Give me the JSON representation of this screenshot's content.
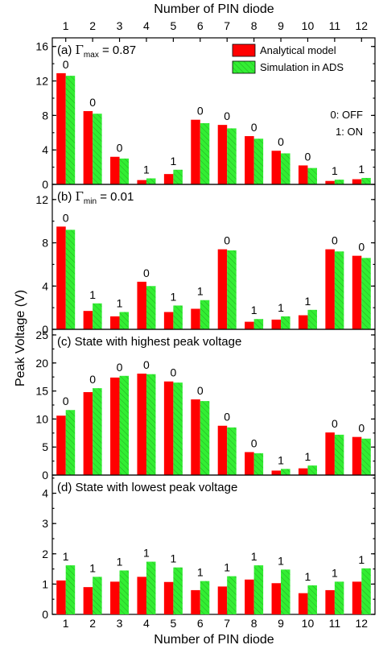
{
  "chart_data": {
    "type": "bar",
    "top_xlabel": "Number of PIN diode",
    "xlabel": "Number of PIN diode",
    "ylabel": "Peak Voltage (V)",
    "categories": [
      "1",
      "2",
      "3",
      "4",
      "5",
      "6",
      "7",
      "8",
      "9",
      "10",
      "11",
      "12"
    ],
    "legend": {
      "placement": "top-right",
      "entries": [
        {
          "name": "Analytical model",
          "color": "#ff0000"
        },
        {
          "name": "Simulation in ADS",
          "color": "#33ee33"
        }
      ],
      "notes": [
        "0: OFF",
        "1: ON"
      ]
    },
    "panels": [
      {
        "label": "(a)",
        "title_symbol": "Γ",
        "title_sub": "max",
        "title_rest": "= 0.87",
        "title": "",
        "ylim": [
          0,
          17
        ],
        "yticks": [
          0,
          4,
          8,
          12,
          16
        ],
        "minor_step": 2,
        "states": [
          "0",
          "0",
          "0",
          "1",
          "1",
          "0",
          "0",
          "0",
          "0",
          "0",
          "1",
          "1"
        ],
        "series": [
          {
            "name": "Analytical model",
            "values": [
              12.9,
              8.5,
              3.2,
              0.5,
              1.2,
              7.5,
              6.9,
              5.6,
              3.9,
              2.2,
              0.4,
              0.6
            ]
          },
          {
            "name": "Simulation in ADS",
            "values": [
              12.6,
              8.2,
              3.0,
              0.7,
              1.7,
              7.1,
              6.5,
              5.3,
              3.6,
              1.9,
              0.55,
              0.75
            ]
          }
        ]
      },
      {
        "label": "(b)",
        "title_symbol": "Γ",
        "title_sub": "min",
        "title_rest": "= 0.01",
        "title": "",
        "ylim": [
          0,
          13.4
        ],
        "yticks": [
          0,
          4,
          8,
          12
        ],
        "minor_step": 2,
        "states": [
          "0",
          "1",
          "1",
          "0",
          "1",
          "1",
          "0",
          "1",
          "1",
          "1",
          "0",
          "0"
        ],
        "series": [
          {
            "name": "Analytical model",
            "values": [
              9.5,
              1.7,
              1.2,
              4.4,
              1.6,
              1.9,
              7.4,
              0.7,
              0.9,
              1.3,
              7.4,
              6.8
            ]
          },
          {
            "name": "Simulation in ADS",
            "values": [
              9.2,
              2.4,
              1.6,
              4.0,
              2.2,
              2.7,
              7.3,
              0.95,
              1.2,
              1.8,
              7.2,
              6.6
            ]
          }
        ]
      },
      {
        "label": "(c)",
        "title_symbol": "",
        "title_sub": "",
        "title_rest": "",
        "title": "State with highest peak voltage",
        "ylim": [
          0,
          26
        ],
        "yticks": [
          0,
          5,
          10,
          15,
          20,
          25
        ],
        "minor_step": 2.5,
        "states": [
          "0",
          "0",
          "0",
          "0",
          "0",
          "0",
          "0",
          "0",
          "1",
          "1",
          "0",
          "0"
        ],
        "series": [
          {
            "name": "Analytical model",
            "values": [
              10.6,
              14.8,
              17.4,
              18.1,
              16.7,
              13.5,
              8.8,
              4.1,
              0.8,
              1.2,
              7.6,
              6.8
            ]
          },
          {
            "name": "Simulation in ADS",
            "values": [
              11.6,
              15.5,
              17.7,
              18.0,
              16.5,
              13.2,
              8.5,
              3.9,
              1.1,
              1.7,
              7.2,
              6.5
            ]
          }
        ]
      },
      {
        "label": "(d)",
        "title_symbol": "",
        "title_sub": "",
        "title_rest": "",
        "title": "State with lowest peak voltage",
        "ylim": [
          0,
          4.6
        ],
        "yticks": [
          0,
          1,
          2,
          3,
          4
        ],
        "minor_step": 0.5,
        "states": [
          "1",
          "1",
          "1",
          "1",
          "1",
          "1",
          "1",
          "1",
          "1",
          "1",
          "1",
          "1"
        ],
        "series": [
          {
            "name": "Analytical model",
            "values": [
              1.12,
              0.9,
              1.08,
              1.24,
              1.07,
              0.8,
              0.92,
              1.15,
              1.03,
              0.7,
              0.8,
              1.08
            ]
          },
          {
            "name": "Simulation in ADS",
            "values": [
              1.62,
              1.24,
              1.45,
              1.74,
              1.55,
              1.1,
              1.26,
              1.62,
              1.48,
              0.96,
              1.08,
              1.52
            ]
          }
        ]
      }
    ]
  }
}
